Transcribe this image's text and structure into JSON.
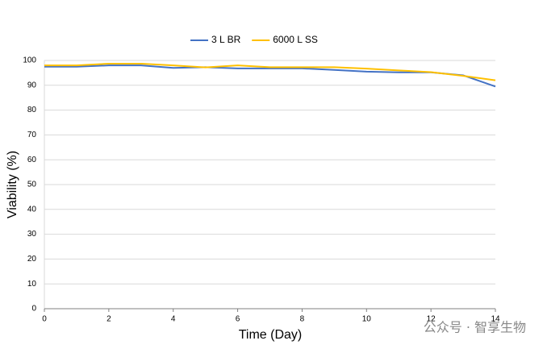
{
  "chart_data": {
    "type": "line",
    "x_label": "Time (Day)",
    "y_label": "Viability (%)",
    "x": [
      0,
      1,
      2,
      3,
      4,
      5,
      6,
      7,
      8,
      9,
      10,
      11,
      12,
      13,
      14
    ],
    "series": [
      {
        "name": "3 L BR",
        "color": "#4472c4",
        "values": [
          97.5,
          97.5,
          98,
          98,
          97,
          97.3,
          96.8,
          96.8,
          96.8,
          96.2,
          95.5,
          95.2,
          95.2,
          94,
          89.5
        ]
      },
      {
        "name": "6000 L SS",
        "color": "#ffc000",
        "values": [
          98,
          98,
          98.7,
          98.7,
          98,
          97.2,
          98,
          97.3,
          97.3,
          97.3,
          96.7,
          96,
          95.3,
          93.8,
          92
        ]
      }
    ],
    "xlim": [
      0,
      14
    ],
    "xticks": [
      0,
      2,
      4,
      6,
      8,
      10,
      12,
      14
    ],
    "ylim": [
      0,
      100
    ],
    "yticks": [
      0,
      10,
      20,
      30,
      40,
      50,
      60,
      70,
      80,
      90,
      100
    ],
    "grid": true,
    "legend": "top"
  },
  "watermark": "公众号 · 智享生物"
}
